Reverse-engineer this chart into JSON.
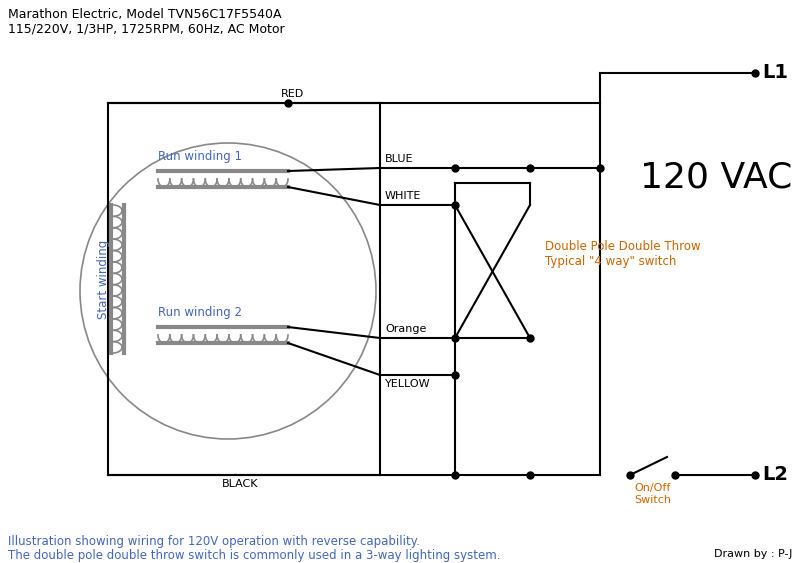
{
  "title_line1": "Marathon Electric, Model TVN56C17F5540A",
  "title_line2": "115/220V, 1/3HP, 1725RPM, 60Hz, AC Motor",
  "footer_line1": "Illustration showing wiring for 120V operation with reverse capability.",
  "footer_line2": "The double pole double throw switch is commonly used in a 3-way lighting system.",
  "footer_right": "Drawn by : P-J",
  "vac_label": "120 VAC",
  "l1_label": "L1",
  "l2_label": "L2",
  "dpdt_label1": "Double Pole Double Throw",
  "dpdt_label2": "Typical \"4 way\" switch",
  "onoff_label1": "On/Off",
  "onoff_label2": "Switch",
  "run_winding1": "Run winding 1",
  "run_winding2": "Run winding 2",
  "start_winding": "Start winding",
  "wire_red": "RED",
  "wire_blue": "BLUE",
  "wire_white": "WHITE",
  "wire_orange": "Orange",
  "wire_yellow": "YELLOW",
  "wire_black": "BLACK",
  "color_blue": "#4466bb",
  "color_orange": "#cc6600",
  "color_black": "#000000",
  "color_gray": "#888888",
  "color_dark_gray": "#555555",
  "bg_color": "#ffffff"
}
